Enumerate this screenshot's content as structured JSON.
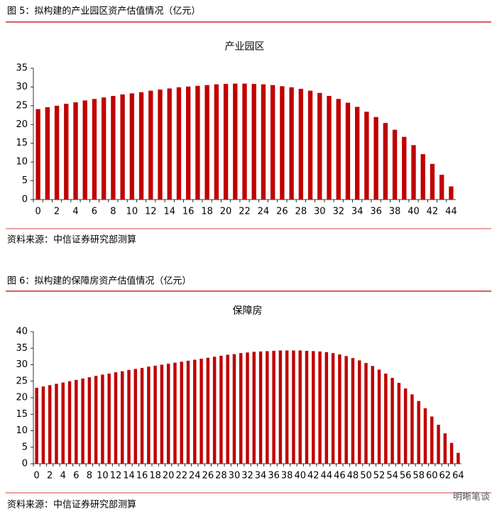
{
  "figure_captions": [
    "图 5：拟构建的产业园区资产估值情况（亿元）",
    "图 6：拟构建的保障房资产估值情况（亿元）"
  ],
  "source_notes": [
    "资料来源：中信证券研究部测算",
    "资料来源：中信证券研究部测算"
  ],
  "watermark": "明晰笔谈",
  "chart_data": [
    {
      "type": "bar",
      "title": "产业园区",
      "color": "#c00000",
      "categories": [
        "0",
        null,
        "2",
        null,
        "4",
        null,
        "6",
        null,
        "8",
        null,
        "10",
        null,
        "12",
        null,
        "14",
        null,
        "16",
        null,
        "18",
        null,
        "20",
        null,
        "22",
        null,
        "24",
        null,
        "26",
        null,
        "28",
        null,
        "30",
        null,
        "32",
        null,
        "34",
        null,
        "36",
        null,
        "38",
        null,
        "40",
        null,
        "42",
        null,
        "44"
      ],
      "values": [
        24.1,
        24.6,
        25.0,
        25.5,
        25.9,
        26.4,
        26.8,
        27.2,
        27.6,
        28.0,
        28.3,
        28.6,
        29.0,
        29.3,
        29.6,
        29.9,
        30.1,
        30.3,
        30.5,
        30.7,
        30.8,
        30.9,
        30.9,
        30.8,
        30.7,
        30.5,
        30.2,
        29.9,
        29.5,
        29.0,
        28.4,
        27.6,
        26.8,
        25.8,
        24.7,
        23.4,
        22.0,
        20.4,
        18.6,
        16.7,
        14.5,
        12.1,
        9.5,
        6.6,
        3.5
      ],
      "ylim": [
        0,
        35
      ],
      "yticks": [
        0,
        5,
        10,
        15,
        20,
        25,
        30,
        35
      ]
    },
    {
      "type": "bar",
      "title": "保障房",
      "color": "#c00000",
      "categories": [
        "0",
        null,
        "2",
        null,
        "4",
        null,
        "6",
        null,
        "8",
        null,
        "10",
        null,
        "12",
        null,
        "14",
        null,
        "16",
        null,
        "18",
        null,
        "20",
        null,
        "22",
        null,
        "24",
        null,
        "26",
        null,
        "28",
        null,
        "30",
        null,
        "32",
        null,
        "34",
        null,
        "36",
        null,
        "38",
        null,
        "40",
        null,
        "42",
        null,
        "44",
        null,
        "46",
        null,
        "48",
        null,
        "50",
        null,
        "52",
        null,
        "54",
        null,
        "56",
        null,
        "58",
        null,
        "60",
        null,
        "62",
        null,
        "64"
      ],
      "values": [
        23.0,
        23.4,
        23.8,
        24.2,
        24.6,
        25.0,
        25.4,
        25.8,
        26.2,
        26.6,
        27.0,
        27.3,
        27.7,
        28.0,
        28.4,
        28.7,
        29.0,
        29.4,
        29.7,
        30.0,
        30.3,
        30.6,
        30.9,
        31.2,
        31.5,
        31.8,
        32.1,
        32.4,
        32.7,
        33.0,
        33.2,
        33.5,
        33.7,
        33.9,
        34.0,
        34.1,
        34.2,
        34.3,
        34.3,
        34.3,
        34.3,
        34.2,
        34.1,
        34.0,
        33.8,
        33.5,
        33.1,
        32.6,
        32.0,
        31.3,
        30.5,
        29.6,
        28.5,
        27.3,
        26.0,
        24.5,
        22.8,
        21.0,
        19.0,
        16.8,
        14.3,
        11.8,
        9.2,
        6.3,
        3.3
      ],
      "ylim": [
        0,
        40
      ],
      "yticks": [
        0,
        5,
        10,
        15,
        20,
        25,
        30,
        35,
        40
      ]
    }
  ]
}
